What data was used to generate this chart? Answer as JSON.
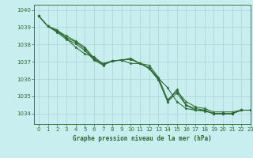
{
  "title": "Graphe pression niveau de la mer (hPa)",
  "background_color": "#c8eef0",
  "grid_color": "#b0d8dc",
  "line_color": "#2d6b2d",
  "spine_color": "#3a7a3a",
  "xlim": [
    -0.5,
    23
  ],
  "ylim": [
    1033.4,
    1040.3
  ],
  "yticks": [
    1034,
    1035,
    1036,
    1037,
    1038,
    1039,
    1040
  ],
  "xticks": [
    0,
    1,
    2,
    3,
    4,
    5,
    6,
    7,
    8,
    9,
    10,
    11,
    12,
    13,
    14,
    15,
    16,
    17,
    18,
    19,
    20,
    21,
    22,
    23
  ],
  "series": [
    [
      1039.65,
      1039.05,
      1038.85,
      1038.35,
      1037.85,
      1037.45,
      1037.3,
      1036.85,
      1037.05,
      1037.1,
      1037.15,
      1036.9,
      1036.65,
      1036.05,
      1035.5,
      1034.7,
      1034.3,
      1034.2,
      1034.15,
      1034.0,
      1034.0,
      1034.0,
      1034.2,
      1034.2
    ],
    [
      1039.65,
      1039.05,
      1038.7,
      1038.3,
      1038.05,
      1037.65,
      1037.1,
      1036.8,
      1037.05,
      1037.1,
      1036.9,
      1036.9,
      1036.8,
      1036.1,
      1034.8,
      1035.3,
      1034.7,
      1034.4,
      1034.3,
      1034.1,
      1034.1,
      1034.1,
      1034.2,
      1034.2
    ],
    [
      1039.65,
      1039.05,
      1038.75,
      1038.4,
      1038.15,
      1037.75,
      1037.15,
      1036.85,
      1037.05,
      1037.1,
      1037.15,
      1036.9,
      1036.6,
      1035.95,
      1034.7,
      1035.2,
      1034.5,
      1034.2,
      1034.2,
      1034.0,
      1034.0,
      1034.0,
      1034.2,
      1034.2
    ],
    [
      1039.65,
      1039.05,
      1038.8,
      1038.5,
      1038.2,
      1037.85,
      1037.2,
      1036.9,
      1037.05,
      1037.1,
      1037.2,
      1036.9,
      1036.65,
      1036.0,
      1034.7,
      1035.4,
      1034.5,
      1034.3,
      1034.2,
      1034.0,
      1034.0,
      1034.0,
      1034.2,
      1034.2
    ]
  ]
}
